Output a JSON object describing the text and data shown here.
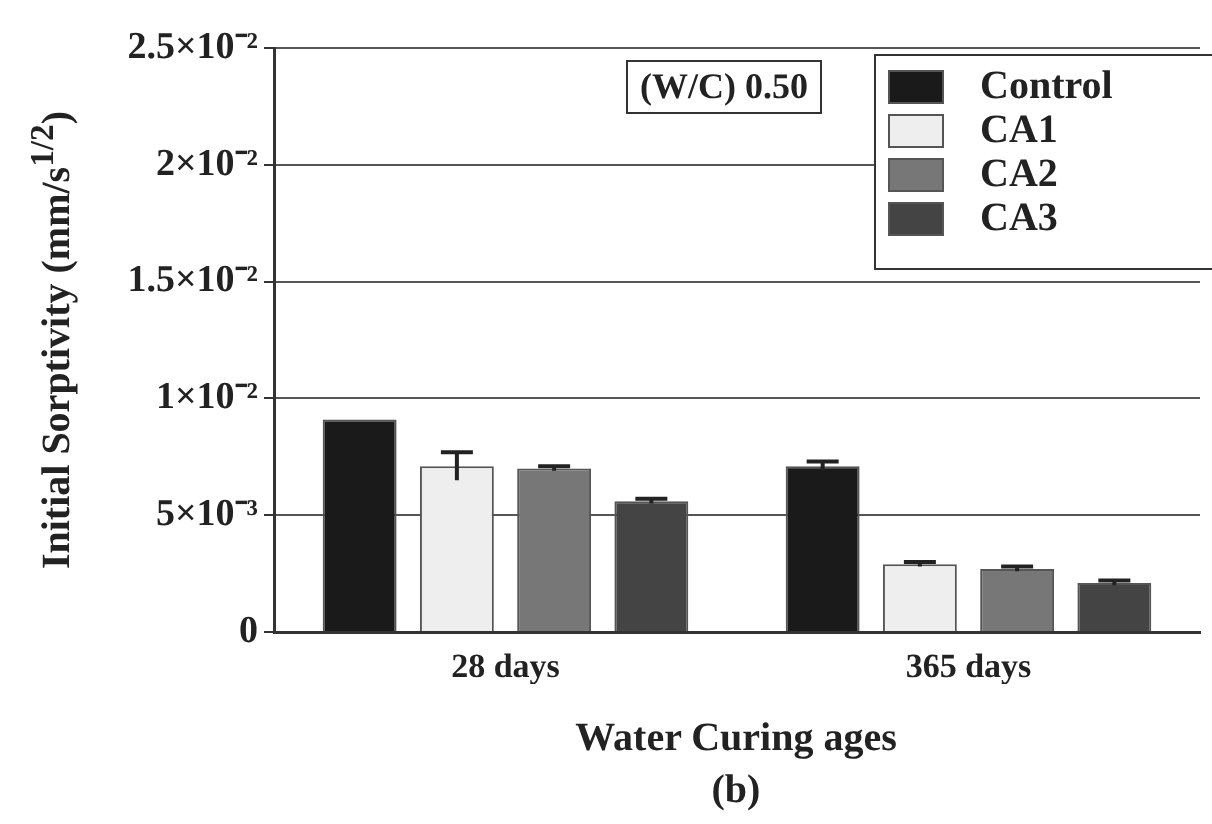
{
  "chart_data": {
    "type": "bar",
    "ylabel": "Initial Sorptivity (mm/s$^{1/2}$)",
    "xlabel": "Water Curing ages",
    "annotations": [
      "(W/C) 0.50",
      "(b)"
    ],
    "categories": [
      "28 days",
      "365 days"
    ],
    "series": [
      {
        "name": "Control",
        "color": "#1a1a1a",
        "values": [
          0.0091,
          0.0071
        ],
        "errors": [
          null,
          0.0002
        ]
      },
      {
        "name": "CA1",
        "color": "#eeeeee",
        "values": [
          0.0071,
          0.0029
        ],
        "errors": [
          0.0006,
          0.0001
        ]
      },
      {
        "name": "CA2",
        "color": "#777777",
        "values": [
          0.007,
          0.0027
        ],
        "errors": [
          0.0001,
          0.0001
        ]
      },
      {
        "name": "CA3",
        "color": "#444444",
        "values": [
          0.0056,
          0.0021
        ],
        "errors": [
          0.0001,
          0.0001
        ]
      }
    ],
    "ylim": [
      0,
      0.025
    ],
    "yticks": [
      0,
      {
        "value": 0.005,
        "label": "5×10⁻³"
      },
      {
        "value": 0.01,
        "label": "1×10⁻²"
      },
      {
        "value": 0.015,
        "label": "1.5×10⁻²"
      },
      {
        "value": 0.02,
        "label": "2×10⁻²"
      },
      {
        "value": 0.025,
        "label": "2.5×10⁻²"
      }
    ],
    "grid": "y",
    "legend": "top right"
  }
}
